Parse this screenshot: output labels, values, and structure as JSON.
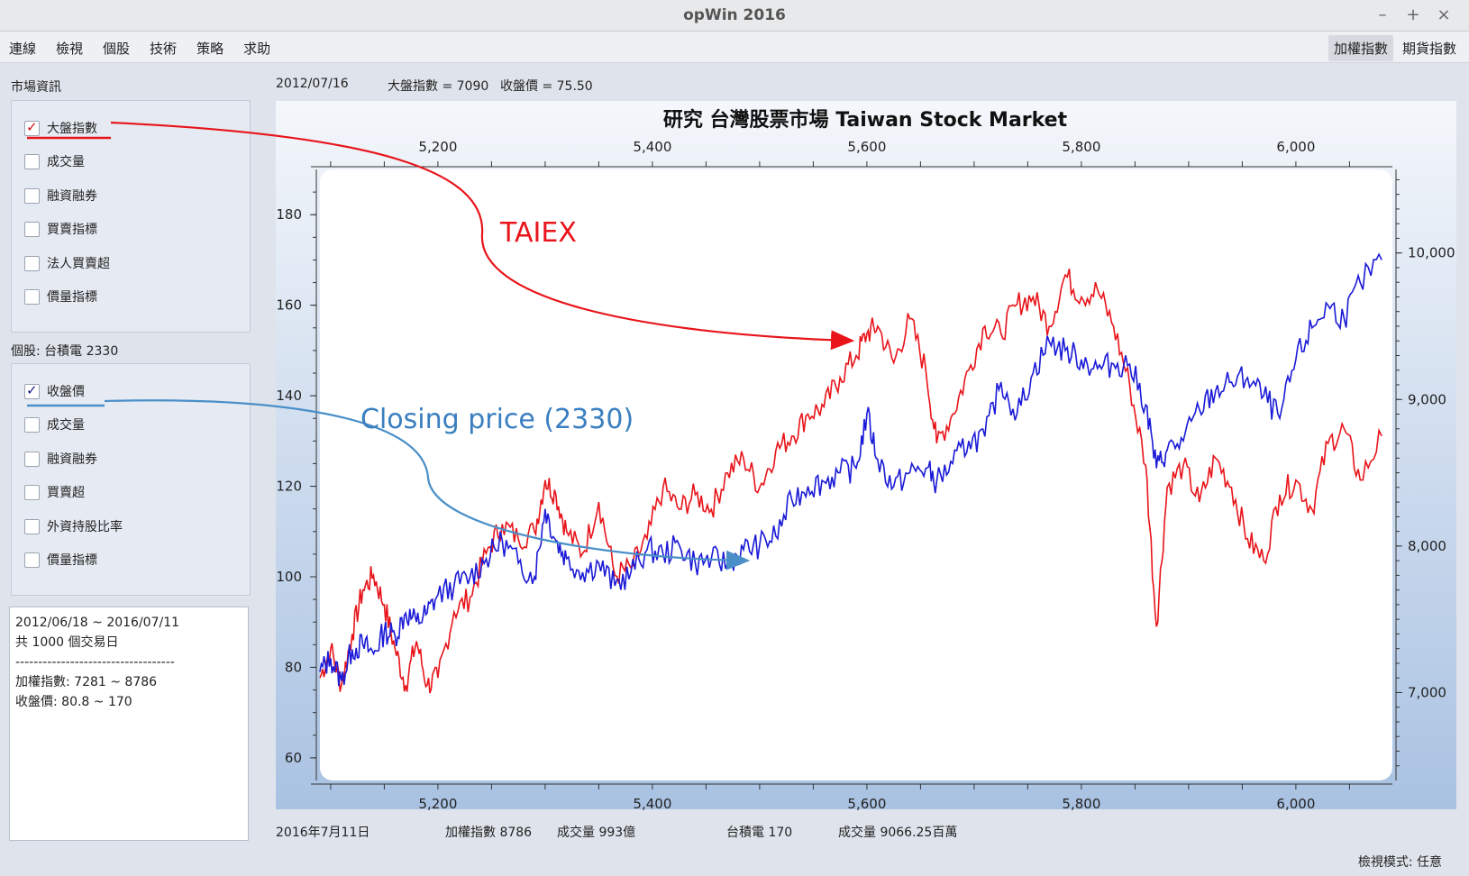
{
  "window": {
    "title": "opWin 2016",
    "buttons": [
      "–",
      "+",
      "×"
    ]
  },
  "menubar": {
    "items": [
      "連線",
      "檢視",
      "個股",
      "技術",
      "策略",
      "求助"
    ],
    "right_tabs": [
      "加權指數",
      "期貨指數"
    ]
  },
  "market": {
    "label": "市場資訊",
    "items": [
      {
        "label": "大盤指數",
        "checked": true
      },
      {
        "label": "成交量",
        "checked": false
      },
      {
        "label": "融資融券",
        "checked": false
      },
      {
        "label": "買賣指標",
        "checked": false
      },
      {
        "label": "法人買賣超",
        "checked": false
      },
      {
        "label": "價量指標",
        "checked": false
      }
    ]
  },
  "stock": {
    "label": "個股: 台積電  2330",
    "items": [
      {
        "label": "收盤價",
        "checked": true
      },
      {
        "label": "成交量",
        "checked": false
      },
      {
        "label": "融資融券",
        "checked": false
      },
      {
        "label": "買賣超",
        "checked": false
      },
      {
        "label": "外資持股比率",
        "checked": false
      },
      {
        "label": "價量指標",
        "checked": false
      }
    ]
  },
  "info": {
    "line1": "2012/06/18 ~ 2016/07/11",
    "line2": "共 1000 個交易日",
    "line3": "-----------------------------------",
    "line4": "加權指數: 7281 ~ 8786",
    "line5": "收盤價: 80.8 ~ 170"
  },
  "top": {
    "date": "2012/07/16",
    "index": "大盤指數 = 7090",
    "price": "收盤價 = 75.50"
  },
  "bottom": {
    "date": "2016年7月11日",
    "index": "加權指數 8786",
    "volume": "成交量 993億",
    "stock": "台積電  170",
    "stock_volume": "成交量 9066.25百萬"
  },
  "status": {
    "view_mode": "檢視模式: 任意"
  },
  "annotations": {
    "taiex": "TAIEX",
    "closing": "Closing price (2330)"
  },
  "colors": {
    "taiex": "#e8141a",
    "closing": "#1a1ad8",
    "closing_annotation": "#4a8fc8"
  },
  "chart_data": {
    "type": "line",
    "title": "研究 台灣股票市場 Taiwan Stock Market",
    "x_ticks": [
      "5,200",
      "5,400",
      "5,600",
      "5,800",
      "6,000"
    ],
    "x_tick_values": [
      5200,
      5400,
      5600,
      5800,
      6000
    ],
    "xlim": [
      5090,
      6090
    ],
    "left_axis": {
      "ticks": [
        "60",
        "80",
        "100",
        "120",
        "140",
        "160",
        "180"
      ],
      "values": [
        60,
        80,
        100,
        120,
        140,
        160,
        180
      ],
      "ylim": [
        55,
        190
      ]
    },
    "right_axis": {
      "ticks": [
        "7,000",
        "8,000",
        "9,000",
        "10,000"
      ],
      "values": [
        7000,
        8000,
        9000,
        10000
      ],
      "ylim": [
        6400,
        10570
      ]
    },
    "series": [
      {
        "axis": "right",
        "x": [
          5090,
          5100,
          5110,
          5120,
          5130,
          5140,
          5150,
          5160,
          5170,
          5180,
          5190,
          5200,
          5215,
          5230,
          5245,
          5260,
          5275,
          5290,
          5300,
          5310,
          5320,
          5335,
          5350,
          5365,
          5380,
          5395,
          5410,
          5425,
          5440,
          5455,
          5470,
          5485,
          5500,
          5515,
          5530,
          5545,
          5560,
          5575,
          5590,
          5600,
          5610,
          5625,
          5640,
          5655,
          5665,
          5680,
          5695,
          5710,
          5725,
          5740,
          5755,
          5770,
          5785,
          5800,
          5815,
          5830,
          5845,
          5860,
          5870,
          5880,
          5895,
          5910,
          5925,
          5940,
          5955,
          5970,
          5985,
          6000,
          6015,
          6030,
          6045,
          6060,
          6080
        ],
        "values": [
          7100,
          7300,
          7050,
          7400,
          7700,
          7800,
          7600,
          7300,
          7050,
          7350,
          7050,
          7100,
          7550,
          7650,
          7950,
          8150,
          8050,
          8100,
          8450,
          8350,
          8100,
          7950,
          8300,
          7800,
          7850,
          8050,
          8400,
          8250,
          8350,
          8250,
          8500,
          8600,
          8400,
          8650,
          8750,
          8900,
          8950,
          9150,
          9300,
          9450,
          9500,
          9250,
          9550,
          9200,
          8700,
          8900,
          9200,
          9500,
          9450,
          9650,
          9700,
          9500,
          9850,
          9700,
          9750,
          9500,
          9100,
          8550,
          7450,
          8400,
          8550,
          8300,
          8600,
          8400,
          8050,
          7900,
          8350,
          8450,
          8250,
          8700,
          8800,
          8450,
          8750
        ]
      },
      {
        "axis": "left",
        "x": [
          5090,
          5100,
          5110,
          5120,
          5130,
          5140,
          5150,
          5160,
          5170,
          5180,
          5190,
          5200,
          5215,
          5230,
          5245,
          5260,
          5275,
          5290,
          5300,
          5310,
          5320,
          5335,
          5350,
          5365,
          5380,
          5395,
          5410,
          5425,
          5440,
          5455,
          5470,
          5485,
          5500,
          5515,
          5530,
          5545,
          5560,
          5575,
          5590,
          5600,
          5610,
          5625,
          5640,
          5655,
          5665,
          5680,
          5695,
          5710,
          5725,
          5740,
          5755,
          5770,
          5785,
          5800,
          5815,
          5830,
          5845,
          5860,
          5870,
          5880,
          5895,
          5910,
          5925,
          5940,
          5955,
          5970,
          5985,
          6000,
          6015,
          6030,
          6045,
          6060,
          6080
        ],
        "values": [
          79,
          82,
          77,
          84,
          85,
          83,
          88,
          87,
          92,
          90,
          92,
          96,
          98,
          100,
          104,
          108,
          103,
          100,
          115,
          108,
          104,
          101,
          103,
          98,
          101,
          106,
          105,
          107,
          103,
          104,
          103,
          106,
          107,
          109,
          117,
          120,
          121,
          123,
          124,
          136,
          126,
          120,
          123,
          124,
          121,
          125,
          130,
          131,
          143,
          136,
          145,
          152,
          150,
          148,
          146,
          147,
          147,
          138,
          124,
          128,
          130,
          137,
          141,
          143,
          144,
          140,
          135,
          148,
          155,
          160,
          157,
          165,
          170
        ]
      }
    ]
  }
}
